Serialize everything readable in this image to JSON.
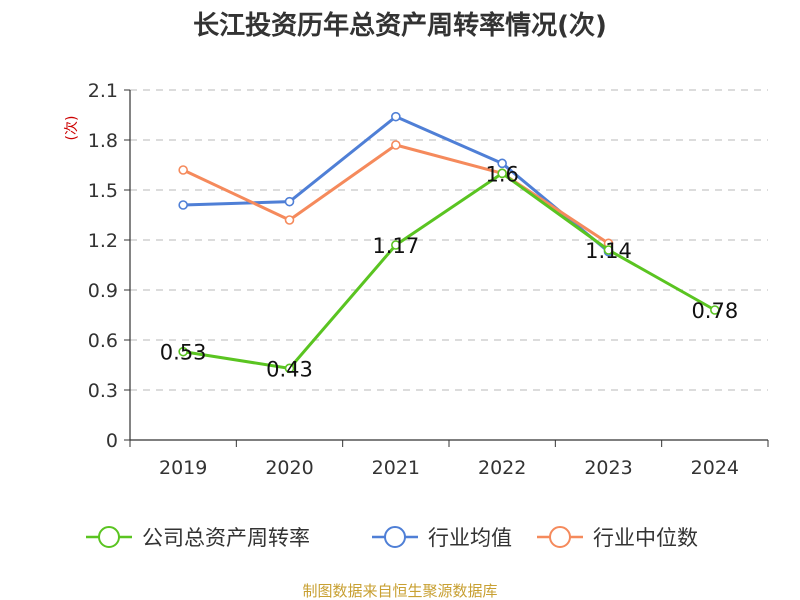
{
  "chart_data": {
    "type": "line",
    "title": "长江投资历年总资产周转率情况(次)",
    "ylabel": "(次)",
    "categories": [
      "2019",
      "2020",
      "2021",
      "2022",
      "2023",
      "2024"
    ],
    "ylim": [
      0,
      2.1
    ],
    "yticks": [
      "0",
      "0.3",
      "0.6",
      "0.9",
      "1.2",
      "1.5",
      "1.8",
      "2.1"
    ],
    "grid": true,
    "legend_position": "bottom",
    "series": [
      {
        "name": "公司总资产周转率",
        "color": "#5ac421",
        "values": [
          0.53,
          0.43,
          1.17,
          1.6,
          1.14,
          0.78
        ],
        "labels": [
          "0.53",
          "0.43",
          "1.17",
          "1.6",
          "1.14",
          "0.78"
        ]
      },
      {
        "name": "行业均值",
        "color": "#4f7fd6",
        "values": [
          1.41,
          1.43,
          1.94,
          1.66,
          1.13,
          null
        ]
      },
      {
        "name": "行业中位数",
        "color": "#f58a5c",
        "values": [
          1.62,
          1.32,
          1.77,
          1.6,
          1.18,
          null
        ]
      }
    ]
  },
  "source_note": "制图数据来自恒生聚源数据库"
}
